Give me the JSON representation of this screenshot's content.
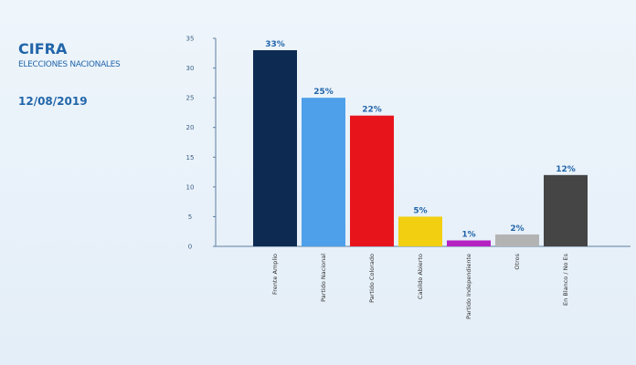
{
  "header": {
    "brand": "CIFRA",
    "subtitle": "ELECCIONES NACIONALES",
    "date": "12/08/2019"
  },
  "chart_data": {
    "type": "bar",
    "title": "",
    "xlabel": "",
    "ylabel": "",
    "ylim": [
      0,
      35
    ],
    "yticks": [
      0,
      5,
      10,
      15,
      20,
      25,
      30,
      35
    ],
    "grid": false,
    "categories": [
      "Frente Amplio",
      "Partido Nacional",
      "Partido Colorado",
      "Cabildo Abierto",
      "Partido Independiente",
      "Otros",
      "En Blanco / No Es"
    ],
    "values": [
      33,
      25,
      22,
      5,
      1,
      2,
      12
    ],
    "data_labels": [
      "33%",
      "25%",
      "22%",
      "5%",
      "1%",
      "2%",
      "12%"
    ],
    "colors": [
      "#0d2b52",
      "#4ea0ea",
      "#e8141c",
      "#f2cf10",
      "#b522c2",
      "#b3b3b3",
      "#454545"
    ]
  }
}
